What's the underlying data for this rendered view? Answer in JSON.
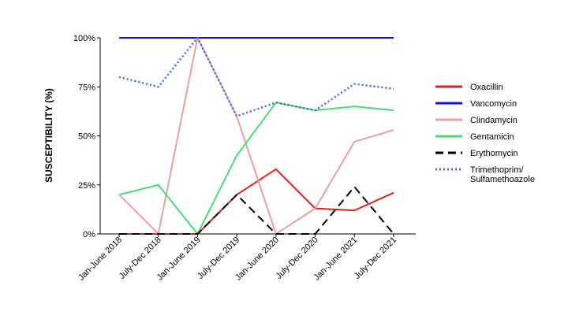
{
  "chart_data": {
    "type": "line",
    "ylabel": "SUSCEPTIBILITY (%)",
    "xlabel": "",
    "ylim": [
      0,
      100
    ],
    "yticks": [
      "0%",
      "25%",
      "50%",
      "75%",
      "100%"
    ],
    "ytick_values": [
      0,
      25,
      50,
      75,
      100
    ],
    "categories": [
      "Jan-June 2018",
      "July-Dec 2018",
      "Jan-June 2019",
      "July-Dec 2019",
      "Jan-June 2020",
      "July-Dec 2020",
      "Jan-June 2021",
      "July-Dec 2021"
    ],
    "grid": false,
    "legend_position": "right",
    "series": [
      {
        "name": "Oxacillin",
        "color": "#e02020",
        "style": "solid",
        "values": [
          0,
          0,
          0,
          20,
          33,
          13,
          12,
          21
        ]
      },
      {
        "name": "Vancomycin",
        "color": "#1414d8",
        "style": "solid",
        "values": [
          100,
          100,
          100,
          100,
          100,
          100,
          100,
          100
        ]
      },
      {
        "name": "Clindamycin",
        "color": "#e8a0a0",
        "style": "solid",
        "values": [
          20,
          0,
          100,
          60,
          0,
          13,
          47,
          53
        ]
      },
      {
        "name": "Gentamicin",
        "color": "#50d878",
        "style": "solid",
        "values": [
          20,
          25,
          0,
          40,
          67,
          63,
          65,
          63
        ]
      },
      {
        "name": "Erythomycin",
        "color": "#000000",
        "style": "dashed",
        "values": [
          0,
          0,
          0,
          20,
          0,
          0,
          24,
          0
        ]
      },
      {
        "name": "Trimethoprim/ Sulfamethoazole",
        "label_lines": [
          "Trimethoprim/",
          "Sulfamethoazole"
        ],
        "color": "#3a6fd8",
        "style": "dotted",
        "values": [
          80,
          75,
          100,
          60,
          67,
          63,
          76.5,
          74
        ]
      }
    ]
  }
}
